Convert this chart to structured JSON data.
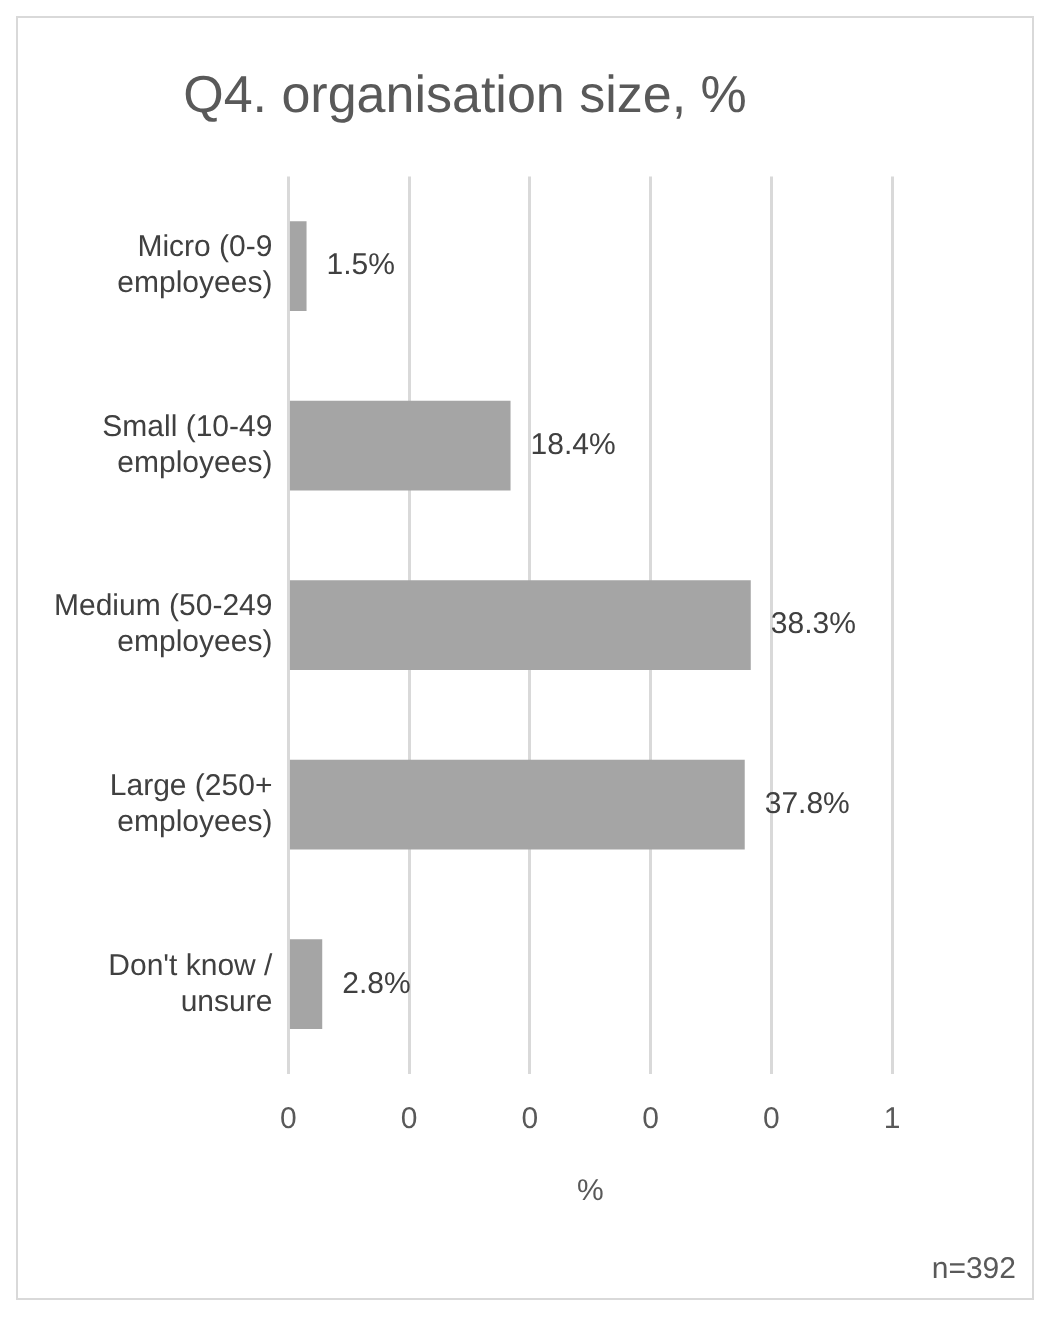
{
  "chart_data": {
    "type": "bar",
    "orientation": "horizontal",
    "title": "Q4. organisation size, %",
    "categories": [
      "Micro (0-9 employees)",
      "Small (10-49 employees)",
      "Medium (50-249 employees)",
      "Large (250+ employees)",
      "Don't know / unsure"
    ],
    "values": [
      0.015,
      0.184,
      0.383,
      0.378,
      0.028
    ],
    "value_labels": [
      "1.5%",
      "18.4%",
      "38.3%",
      "37.8%",
      "2.8%"
    ],
    "color": "#a5a5a5",
    "xlabel": "%",
    "xlim": [
      0,
      0.5
    ],
    "xticks": [
      0,
      {
        "value": 0.1,
        "label": "0"
      },
      {
        "value": 0.2,
        "label": "0"
      },
      {
        "value": 0.3,
        "label": "0"
      },
      {
        "value": 0.4,
        "label": "0"
      },
      {
        "value": 0.5,
        "label": "1"
      }
    ],
    "grid": "x",
    "legend": false,
    "annotations": [
      "n=392"
    ]
  }
}
